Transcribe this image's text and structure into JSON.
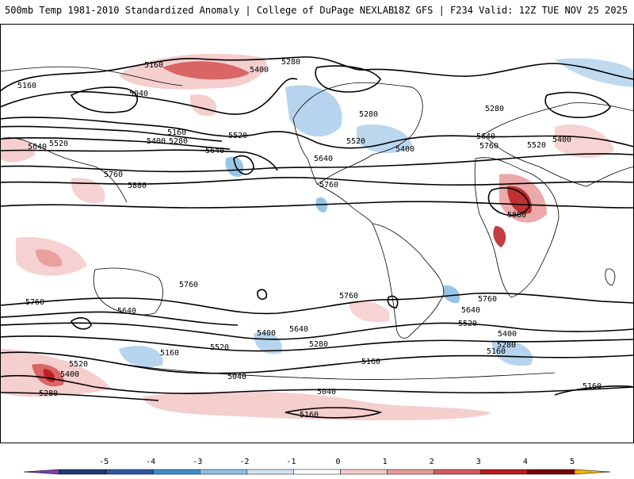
{
  "header": {
    "title": "500mb Temp 1981-2010 Standardized Anomaly | College of DuPage NEXLAB",
    "run": "18Z GFS | F234 Valid: 12Z TUE NOV 25 2025"
  },
  "contour_labels": {
    "l5160a": "5160",
    "l5400a": "5400",
    "l5280a": "5280",
    "l5160b": "5160",
    "l5040a": "5040",
    "l5640a": "5640",
    "l5520a": "5520",
    "l5160c": "5160",
    "l5400b": "5400",
    "l5280b": "5280",
    "l5640b": "5640",
    "l5520b": "5520",
    "l5760a": "5760",
    "l5880a": "5880",
    "l5280c": "5280",
    "l5520c": "5520",
    "l5400c": "5400",
    "l5640c": "5640",
    "l5760b": "5760",
    "l5280d": "5280",
    "l5640d": "5640",
    "l5760c": "5760",
    "l5520d": "5520",
    "l5400d": "5400",
    "l5880b": "5880",
    "l5760d": "5760",
    "l5760e": "5760",
    "l5640e": "5640",
    "l5760f": "5760",
    "l5760g": "5760",
    "l5640f": "5640",
    "l5520e": "5520",
    "l5400e": "5400",
    "l5280e": "5280",
    "l5160d": "5160",
    "l5640g": "5640",
    "l5400f": "5400",
    "l5520f": "5520",
    "l5280f": "5280",
    "l5160e": "5160",
    "l5520g": "5520",
    "l5400g": "5400",
    "l5280g": "5280",
    "l5160f": "5160",
    "l5040b": "5040",
    "l5040c": "5040",
    "l5160g": "5160",
    "l5160h": "5160"
  },
  "colorbar": {
    "ticks": [
      "-5",
      "-4",
      "-3",
      "-2",
      "-1",
      "0",
      "1",
      "2",
      "3",
      "4",
      "5"
    ],
    "colors": [
      "#7a3fa8",
      "#203a70",
      "#2c5aa6",
      "#3d8fd0",
      "#8cbfe6",
      "#cfe3f3",
      "#ffffff",
      "#f4c9c9",
      "#e79a9a",
      "#d65a5a",
      "#b81c1c",
      "#7a0000",
      "#f0b400"
    ]
  }
}
